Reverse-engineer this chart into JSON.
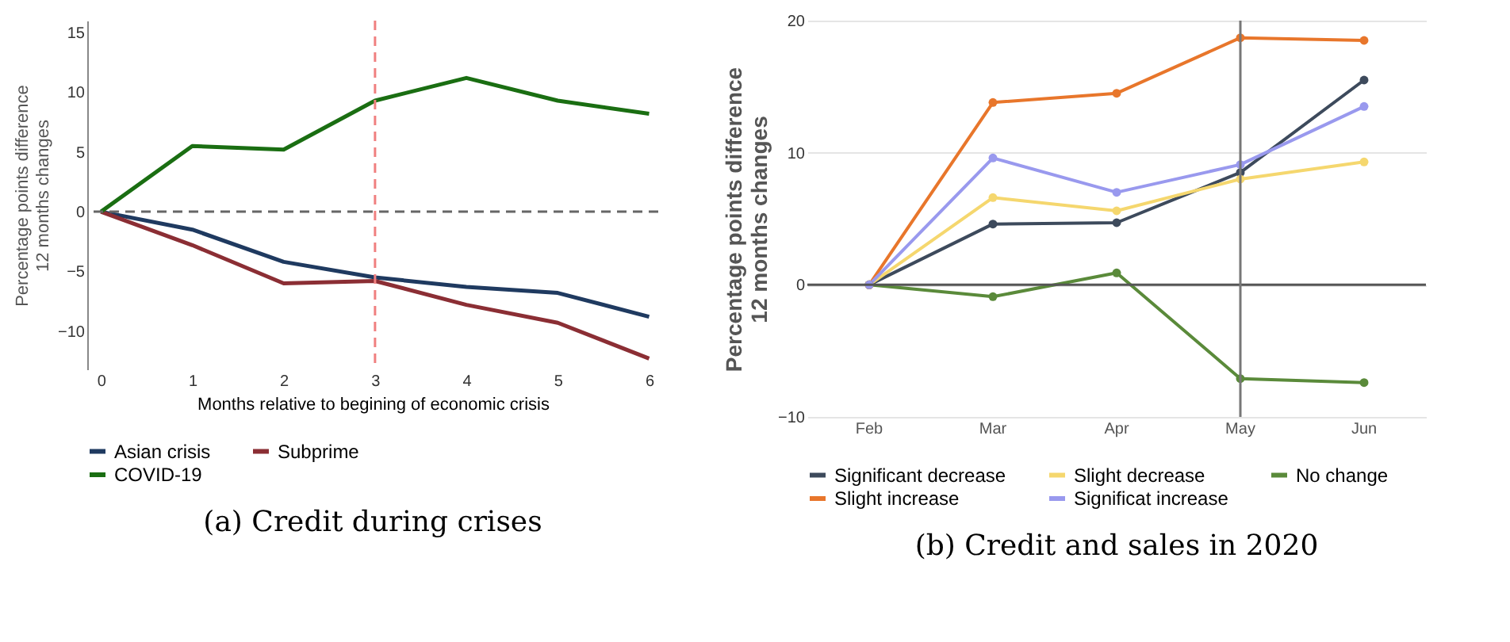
{
  "chart_data": [
    {
      "type": "line",
      "title": "(a) Credit during crises",
      "xlabel": "Months relative to begining of economic crisis",
      "ylabel": "Percentage points difference\n12 months changes",
      "x": [
        0,
        1,
        2,
        3,
        4,
        5,
        6
      ],
      "xlim": [
        -0.15,
        6.1
      ],
      "xticks": [
        0,
        1,
        2,
        3,
        4,
        5,
        6
      ],
      "ylim": [
        -13.2,
        16
      ],
      "yticks": [
        -10,
        -5,
        0,
        5,
        10,
        15
      ],
      "series": [
        {
          "name": "Asian crisis",
          "color": "#1f3a60",
          "values": [
            0,
            -1.5,
            -4.2,
            -5.5,
            -6.3,
            -6.8,
            -8.8
          ]
        },
        {
          "name": "Subprime",
          "color": "#8b2e34",
          "values": [
            0,
            -2.8,
            -6.0,
            -5.8,
            -7.8,
            -9.3,
            -12.3
          ]
        },
        {
          "name": "COVID-19",
          "color": "#1a6e12",
          "values": [
            0,
            5.5,
            5.2,
            9.3,
            11.2,
            9.3,
            8.2
          ]
        }
      ],
      "ref_lines": [
        {
          "axis": "y",
          "value": 0,
          "color": "#666666",
          "line_style": "dashed"
        },
        {
          "axis": "x",
          "value": 3,
          "color": "#f08080",
          "line_style": "dashed"
        }
      ],
      "grid": false,
      "legend": "bottom",
      "marker": "none",
      "line_style": "solid"
    },
    {
      "type": "line",
      "title": "(b) Credit and sales in 2020",
      "ylabel": "Percentage points difference\n12 months changes",
      "categories": [
        "Feb",
        "Mar",
        "Apr",
        "May",
        "Jun"
      ],
      "ylim": [
        -10,
        20
      ],
      "yticks": [
        -10,
        0,
        10,
        20
      ],
      "series": [
        {
          "name": "Significant decrease",
          "color": "#3d4a5c",
          "values": [
            0,
            4.6,
            4.7,
            8.5,
            15.5
          ]
        },
        {
          "name": "Slight decrease",
          "color": "#f5d76e",
          "values": [
            0,
            6.6,
            5.6,
            8.0,
            9.3
          ]
        },
        {
          "name": "No change",
          "color": "#5a8a3a",
          "values": [
            0,
            -0.9,
            0.9,
            -7.1,
            -7.4
          ]
        },
        {
          "name": "Slight increase",
          "color": "#e8762b",
          "values": [
            0,
            13.8,
            14.5,
            18.7,
            18.5
          ]
        },
        {
          "name": "Significat increase",
          "color": "#9999ee",
          "values": [
            0,
            9.6,
            7.0,
            9.1,
            13.5
          ]
        }
      ],
      "ref_lines": [
        {
          "axis": "y",
          "value": 0,
          "color": "#555555",
          "line_style": "solid"
        },
        {
          "axis": "x",
          "value": "May",
          "color": "#777777",
          "line_style": "solid"
        }
      ],
      "grid": "y",
      "legend": "bottom",
      "marker": "circle",
      "line_style": "solid"
    }
  ]
}
